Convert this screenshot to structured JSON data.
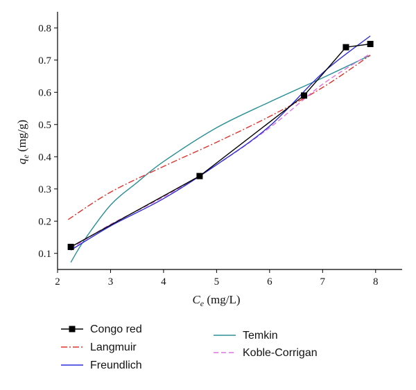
{
  "chart_data": {
    "type": "line",
    "xlabel": "C",
    "xlabel_sub": "e",
    "xlabel_unit": " (mg/L)",
    "ylabel": "q",
    "ylabel_sub": "e",
    "ylabel_unit": " (mg/g)",
    "xlim": [
      2,
      8.5
    ],
    "ylim": [
      0.05,
      0.85
    ],
    "xticks": [
      2,
      3,
      4,
      5,
      6,
      7,
      8
    ],
    "yticks": [
      0.1,
      0.2,
      0.3,
      0.4,
      0.5,
      0.6,
      0.7,
      0.8
    ],
    "xtick_labels": [
      "2",
      "3",
      "4",
      "5",
      "6",
      "7",
      "8"
    ],
    "ytick_labels": [
      "0.1",
      "0.2",
      "0.3",
      "0.4",
      "0.5",
      "0.6",
      "0.7",
      "0.8"
    ],
    "legend_position": "bottom",
    "series": [
      {
        "name": "Congo red",
        "color": "#000000",
        "style": "solid",
        "marker": "square",
        "x": [
          2.25,
          4.68,
          6.65,
          7.44,
          7.9
        ],
        "y": [
          0.12,
          0.34,
          0.59,
          0.74,
          0.75
        ]
      },
      {
        "name": "Langmuir",
        "color": "#e0302a",
        "style": "dashdot",
        "marker": "none",
        "x": [
          2.2,
          3.0,
          4.0,
          5.0,
          6.0,
          7.0,
          7.9
        ],
        "y": [
          0.205,
          0.29,
          0.37,
          0.445,
          0.525,
          0.615,
          0.715
        ]
      },
      {
        "name": "Freundlich",
        "color": "#2b2bd9",
        "style": "solid",
        "marker": "none",
        "x": [
          2.25,
          3.0,
          4.0,
          5.0,
          6.0,
          7.0,
          7.9
        ],
        "y": [
          0.11,
          0.185,
          0.27,
          0.375,
          0.495,
          0.66,
          0.775
        ]
      },
      {
        "name": "Temkin",
        "color": "#2a8f96",
        "style": "solid",
        "marker": "none",
        "x": [
          2.25,
          2.5,
          3.0,
          3.5,
          4.0,
          5.0,
          6.0,
          7.0,
          7.9
        ],
        "y": [
          0.072,
          0.14,
          0.25,
          0.32,
          0.385,
          0.49,
          0.57,
          0.645,
          0.715
        ]
      },
      {
        "name": "Koble-Corrigan",
        "color": "#e070e0",
        "style": "dashed",
        "marker": "none",
        "x": [
          2.25,
          3.0,
          4.0,
          5.0,
          6.0,
          7.0,
          7.9
        ],
        "y": [
          0.115,
          0.19,
          0.275,
          0.375,
          0.49,
          0.625,
          0.72
        ]
      }
    ]
  }
}
